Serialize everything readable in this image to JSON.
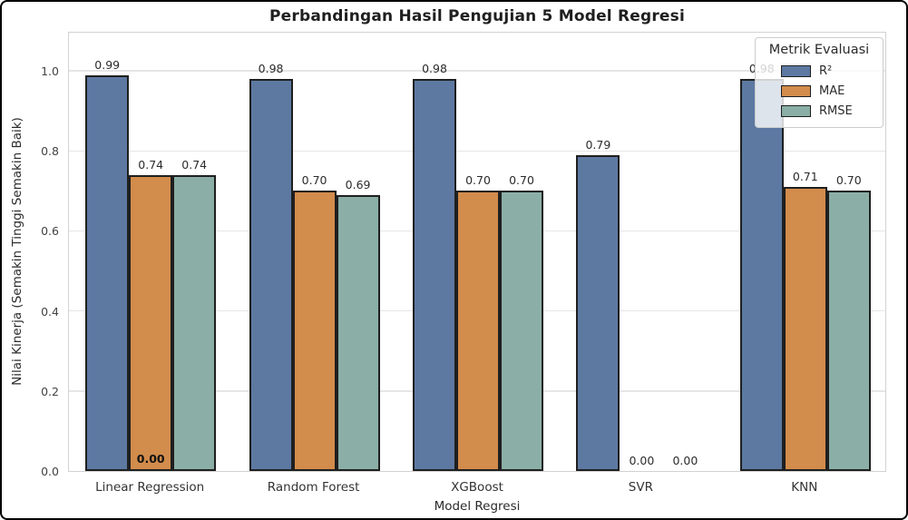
{
  "window": {
    "background": "#ffffff",
    "border_color": "#000000"
  },
  "chart_data": {
    "type": "bar",
    "title": "Perbandingan Hasil Pengujian 5 Model Regresi",
    "xlabel": "Model Regresi",
    "ylabel": "Nilai Kinerja (Semakin Tinggi Semakin Baik)",
    "categories": [
      "Linear Regression",
      "Random Forest",
      "XGBoost",
      "SVR",
      "KNN"
    ],
    "series": [
      {
        "id": "r2",
        "name": "R²",
        "color": "#5d79a2",
        "values": [
          0.99,
          0.98,
          0.98,
          0.79,
          0.98
        ],
        "labels": [
          "0.99",
          "0.98",
          "0.98",
          "0.79",
          "0.98"
        ]
      },
      {
        "id": "mae",
        "name": "MAE",
        "color": "#d28c4c",
        "values": [
          0.74,
          0.7,
          0.7,
          0.0,
          0.71
        ],
        "labels": [
          "0.74",
          "0.70",
          "0.70",
          "0.00",
          "0.71"
        ]
      },
      {
        "id": "rmse",
        "name": "RMSE",
        "color": "#8bafa6",
        "values": [
          0.74,
          0.69,
          0.7,
          0.0,
          0.7
        ],
        "labels": [
          "0.74",
          "0.69",
          "0.70",
          "0.00",
          "0.70"
        ]
      }
    ],
    "bar_edge_color": "#1f1f1f",
    "yticks": [
      {
        "value": 0.0,
        "label": "0.0"
      },
      {
        "value": 0.2,
        "label": "0.2"
      },
      {
        "value": 0.4,
        "label": "0.4"
      },
      {
        "value": 0.6,
        "label": "0.6"
      },
      {
        "value": 0.8,
        "label": "0.8"
      },
      {
        "value": 1.0,
        "label": "1.0"
      }
    ],
    "ylim": [
      0,
      1.1
    ],
    "grid": true,
    "legend": {
      "title": "Metrik Evaluasi",
      "position": "upper right"
    },
    "extra_labels": [
      {
        "text": "0.00",
        "category_index": 0,
        "series_index": 1,
        "placement": "inside-bottom",
        "bold": true
      }
    ]
  }
}
